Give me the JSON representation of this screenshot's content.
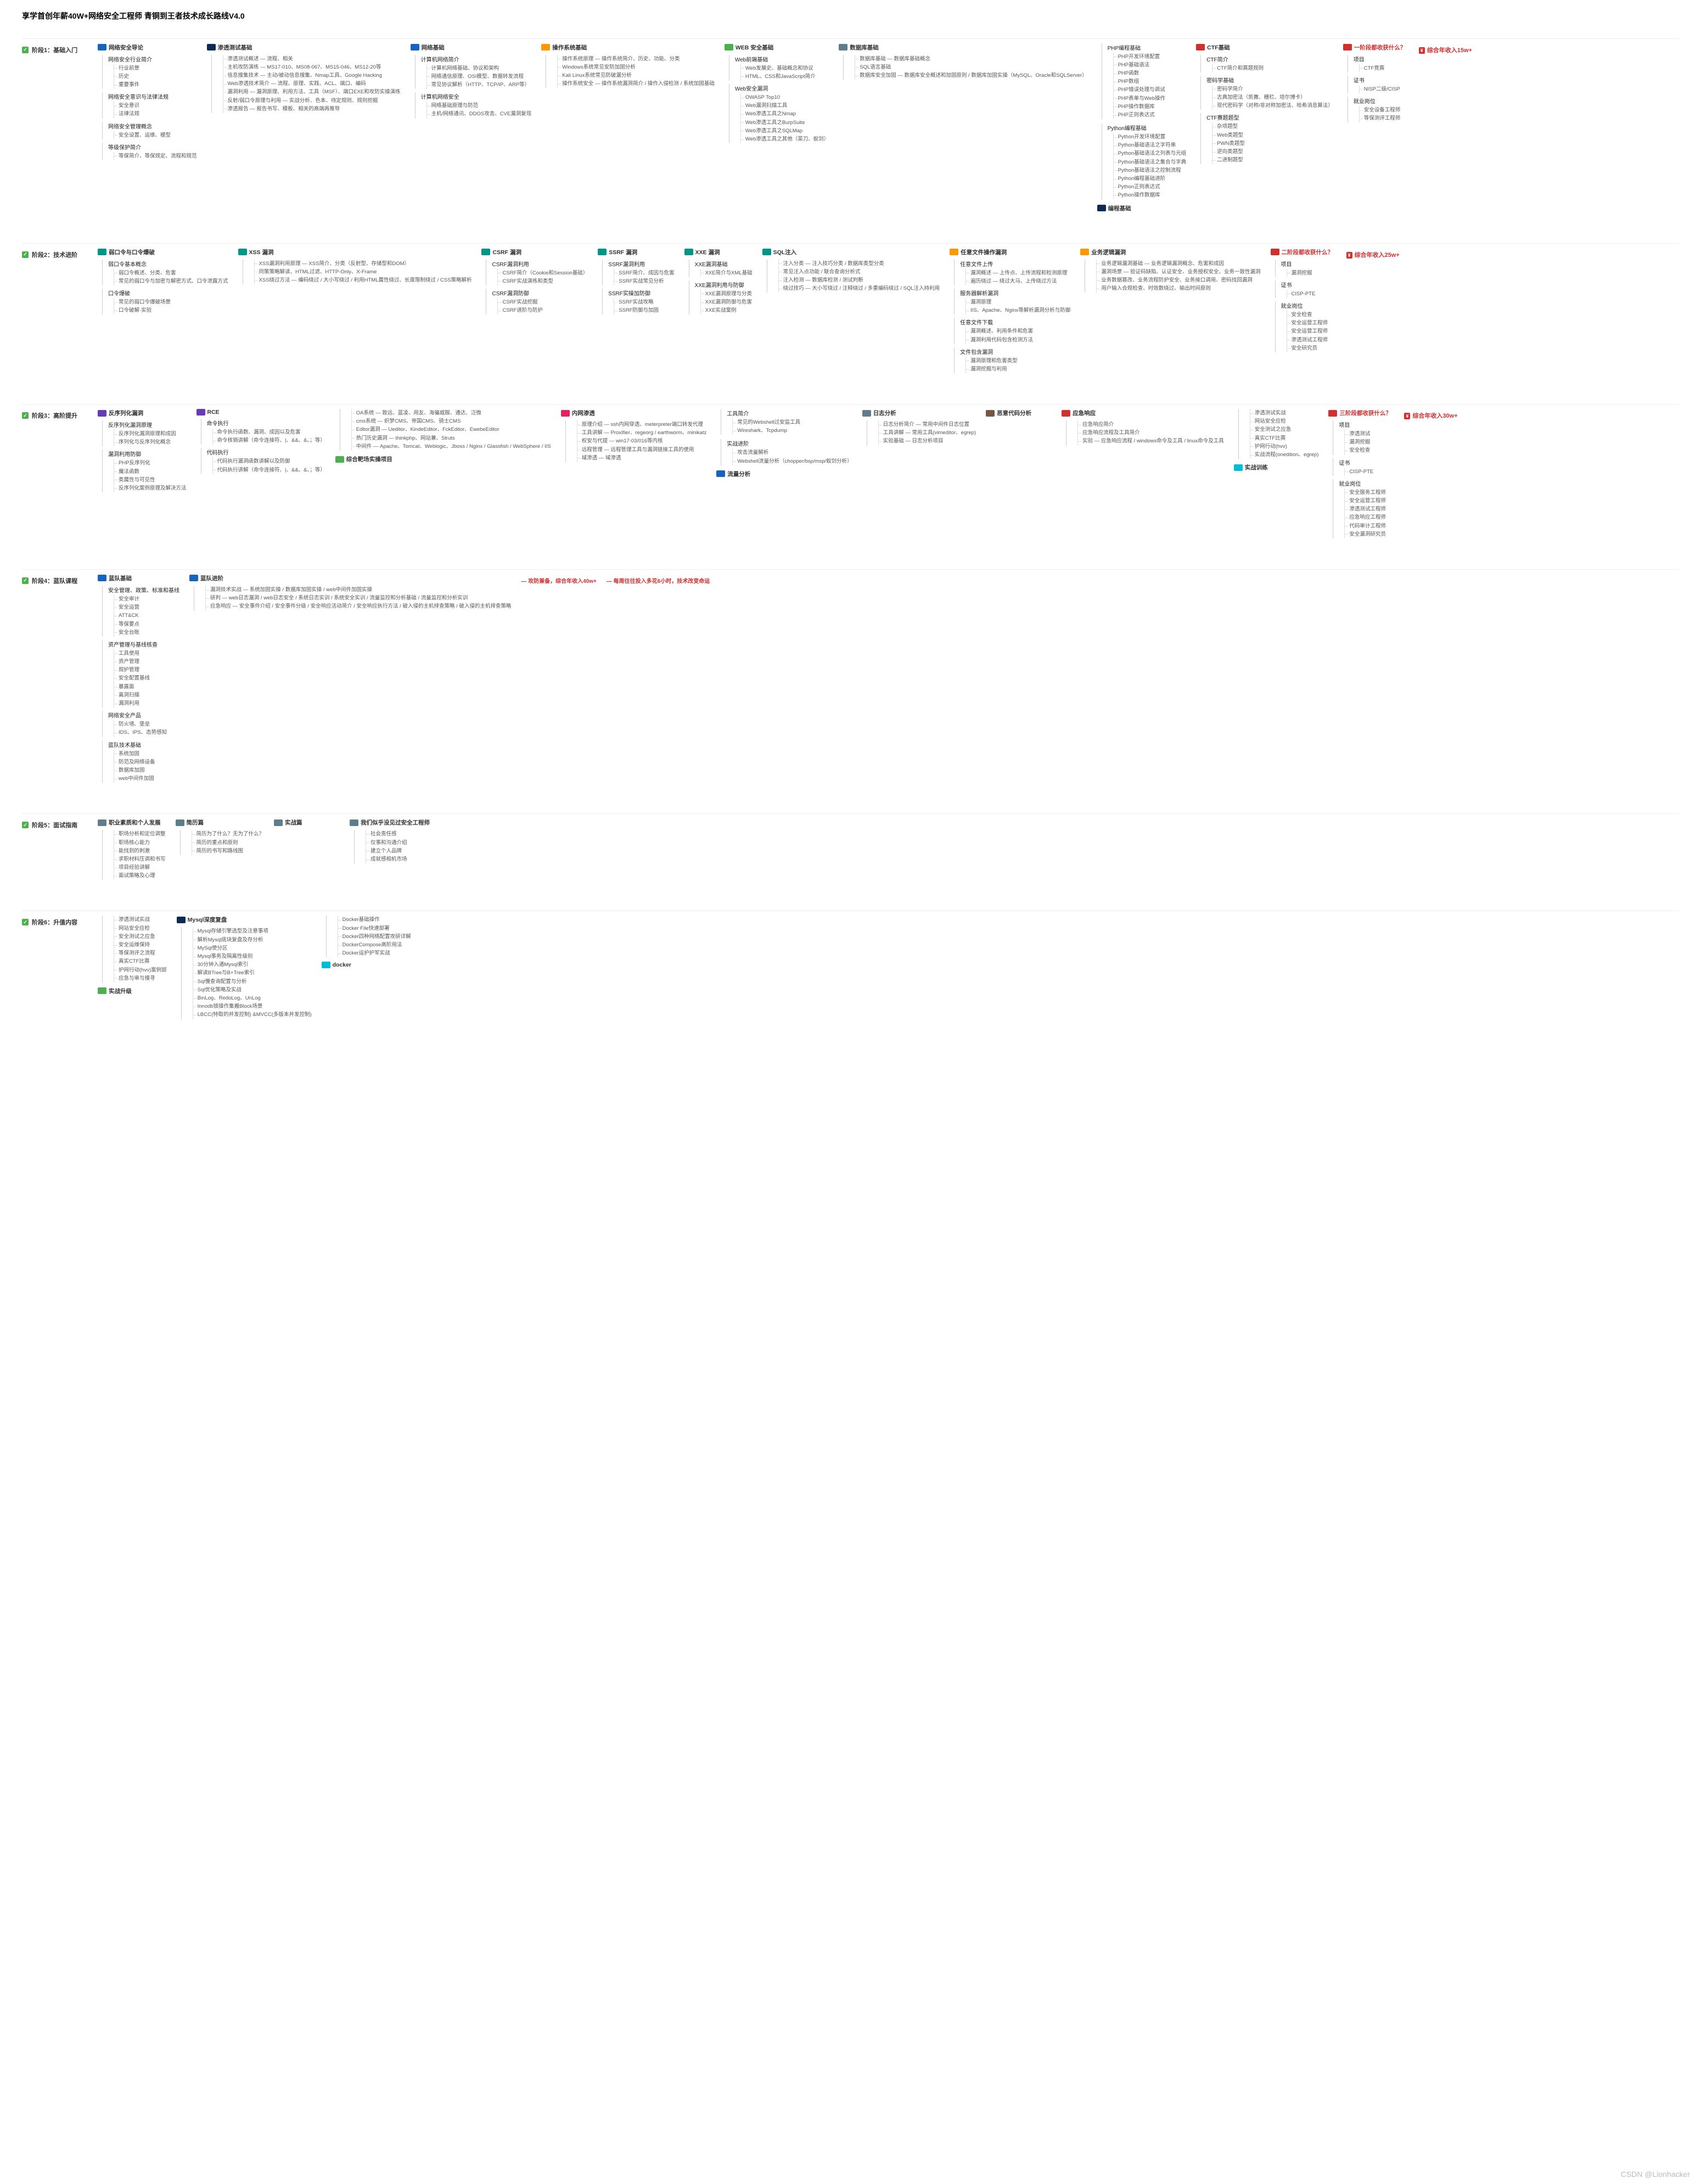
{
  "title": "享学首创年薪40W+网络安全工程师\n青铜到王者技术成长路线V4.0",
  "watermark": "CSDN @Lionhacker",
  "stages": [
    {
      "id": "stage1",
      "label": "阶段1：基础入门",
      "salary": "综合年收入15w+",
      "topics": [
        {
          "title": "网络安全导论",
          "badge": "c-blue",
          "groups": [
            {
              "head": "网络安全行业简介",
              "leaves": [
                "行业前景",
                "历史",
                "重要事件"
              ]
            },
            {
              "head": "网络安全意识与法律法规",
              "leaves": [
                "安全意识",
                "法律法规"
              ]
            },
            {
              "head": "网络安全管理概念",
              "leaves": [
                "安全设置、运维、模型"
              ]
            },
            {
              "head": "等级保护简介",
              "leaves": [
                "等保简介、等保规定、流程和规范"
              ]
            }
          ]
        },
        {
          "title": "渗透测试基础",
          "badge": "c-navy",
          "groups": [
            {
              "head": "",
              "leaves": [
                "渗透测试概述 — 流程、相关",
                "主机攻防演练 — MS17-010、MS08-067、MS15-046、MS12-20等",
                "信息搜集技术 — 主动/被动信息搜集、Nmap工具、Google Hacking",
                "Web渗透技术简介 — 流程、原理、实践、ACL、端口、编码",
                "漏洞利用 — 漏洞原理、利用方法、工具（MSF）、端口EXE和攻防实操演练",
                "反射/弱口令原理与利用 — 实战分析、色本、待定规则、规则挖掘",
                "渗透报告 — 报告书写、模板、相关的高端再推导"
              ]
            }
          ]
        },
        {
          "title": "网络基础",
          "badge": "c-blue",
          "groups": [
            {
              "head": "计算机网络简介",
              "leaves": [
                "计算机网络基础、协议和架构",
                "网络通信原理、OSI模型、数据转发流程",
                "常见协议解析（HTTP、TCP/IP、ARP等）"
              ]
            },
            {
              "head": "计算机网络安全",
              "leaves": [
                "网络基础原理与防范",
                "主机/网络通讯、DDOS攻击、CVE漏洞复现"
              ]
            }
          ]
        },
        {
          "title": "操作系统基础",
          "badge": "c-orange",
          "groups": [
            {
              "head": "",
              "leaves": [
                "操作系统原理 — 操作系统简介、历史、功能、分类",
                "Windows系统常见安防加固分析",
                "Kali Linux系统常见防破漏分析",
                "操作系统安全 — 操作系统漏洞简介 / 操作入侵检测 / 系统加固基础"
              ]
            }
          ]
        },
        {
          "title": "WEB 安全基础",
          "badge": "c-green",
          "groups": [
            {
              "head": "Web前端基础",
              "leaves": [
                "Web发展史、基础概念和协议",
                "HTML、CSS和JavaScript简介"
              ]
            },
            {
              "head": "Web安全漏洞",
              "leaves": [
                "OWASP Top10",
                "Web漏洞扫描工具",
                "Web渗透工具之Nmap",
                "Web渗透工具之BurpSuite",
                "Web渗透工具之SQLMap",
                "Web渗透工具之其他（菜刀、蚁剑）"
              ]
            }
          ]
        },
        {
          "title": "数据库基础",
          "badge": "c-gray",
          "groups": [
            {
              "head": "",
              "leaves": [
                "数据库基础 — 数据库基础概念",
                "SQL语言基础",
                "数据库安全加固 — 数据库安全概述和加固原则 / 数据库加固实操（MySQL、Oracle和SQLServer）"
              ]
            }
          ]
        },
        {
          "title": "编程基础",
          "badge": "c-navy",
          "aboveGroups": [
            {
              "head": "PHP编程基础",
              "leaves": [
                "PHP开发环境配置",
                "PHP基础语法",
                "PHP函数",
                "PHP数组",
                "PHP错误处理与调试",
                "PHP表单与Web操作",
                "PHP操作数据库",
                "PHP正则表达式"
              ]
            },
            {
              "head": "Python编程基础",
              "leaves": [
                "Python开发环境配置",
                "Python基础语法之字符串",
                "Python基础语法之列表与元组",
                "Python基础语法之集合与字典",
                "Python基础语法之控制流程",
                "Python编程基础进阶",
                "Python正则表达式",
                "Python操作数据库"
              ]
            }
          ]
        },
        {
          "title": "CTF基础",
          "badge": "c-red",
          "groups": [
            {
              "head": "CTF简介",
              "leaves": [
                "CTF简介和赛题规则"
              ]
            },
            {
              "head": "密码学基础",
              "leaves": [
                "密码学简介",
                "古典加密法（凯撒、栅栏、培尔博卡）",
                "现代密码学（对称/非对称加密法、哈希消息算法）"
              ]
            },
            {
              "head": "CTF赛题题型",
              "leaves": [
                "杂项题型",
                "Web类题型",
                "PWN类题型",
                "逆向类题型",
                "二进制题型"
              ]
            }
          ]
        },
        {
          "title": "一阶段都收获什么？",
          "badge": "c-red",
          "harvest": true,
          "groups": [
            {
              "head": "项目",
              "leaves": [
                "CTF竞赛"
              ]
            },
            {
              "head": "证书",
              "leaves": [
                "NISP二级/CISP"
              ]
            },
            {
              "head": "就业岗位",
              "leaves": [
                "安全设备工程师",
                "等保测评工程师"
              ]
            }
          ]
        }
      ]
    },
    {
      "id": "stage2",
      "label": "阶段2：技术进阶",
      "salary": "综合年收入25w+",
      "topics": [
        {
          "title": "弱口令与口令爆破",
          "badge": "c-teal",
          "groups": [
            {
              "head": "弱口令基本概念",
              "leaves": [
                "弱口令概述、分类、危害",
                "常见的弱口令与加密与解密方式、口令泄露方式"
              ]
            },
            {
              "head": "口令爆破",
              "leaves": [
                "常见的弱口令爆破场景",
                "口令破解·实验"
              ]
            }
          ]
        },
        {
          "title": "XSS 漏洞",
          "badge": "c-teal",
          "groups": [
            {
              "head": "",
              "leaves": [
                "XSS漏洞利用原理 — XSS简介、分类（反射型、存储型和DOM）",
                "同策策略解读、HTML过滤、HTTP-Only、X-Frame",
                "XSS绕过方法 — 编码绕过 / 大小写绕过 / 利用HTML属性绕过、长度限制绕过 / CSS策略解析"
              ]
            }
          ]
        },
        {
          "title": "CSRF 漏洞",
          "badge": "c-teal",
          "groups": [
            {
              "head": "CSRF漏洞利用",
              "leaves": [
                "CSRF简介（Cookie和Session基础）",
                "CSRF实战演练和类型"
              ]
            },
            {
              "head": "CSRF漏洞防御",
              "leaves": [
                "CSRF实战挖掘",
                "CSRF进阶与防护"
              ]
            }
          ]
        },
        {
          "title": "SSRF 漏洞",
          "badge": "c-teal",
          "groups": [
            {
              "head": "SSRF漏洞利用",
              "leaves": [
                "SSRF简介、成因与危害",
                "SSRF实战常见分析"
              ]
            },
            {
              "head": "SSRF实操加防御",
              "leaves": [
                "SSRF实战攻略",
                "SSRF防御与加固"
              ]
            }
          ]
        },
        {
          "title": "XXE 漏洞",
          "badge": "c-teal",
          "groups": [
            {
              "head": "XXE漏洞基础",
              "leaves": [
                "XXE简介与XML基础"
              ]
            },
            {
              "head": "XXE漏洞利用与防御",
              "leaves": [
                "XXE漏洞原理与分类",
                "XXE漏洞防御与危害",
                "XXE实战案例"
              ]
            }
          ]
        },
        {
          "title": "SQL注入",
          "badge": "c-teal",
          "groups": [
            {
              "head": "",
              "leaves": [
                "注入分类 — 注入技巧分类 / 数据库类型分类",
                "常见注入点功能 / 联合查询分析式",
                "注入检测 — 数据库检测 / 测试判断",
                "绕过技巧 — 大小写绕过 / 注释绕过 / 多重编码绕过 / SQL注入持利用"
              ]
            }
          ]
        },
        {
          "title": "任意文件操作漏洞",
          "badge": "c-orange",
          "groups": [
            {
              "head": "任意文件上传",
              "leaves": [
                "漏洞概述 — 上传点、上传流程和检测原理",
                "遍历绕过 — 绕过大马、上传绕过方法"
              ]
            },
            {
              "head": "服务器解析漏洞",
              "leaves": [
                "漏洞原理",
                "IIS、Apache、Nginx等解析漏洞分析与防御"
              ]
            },
            {
              "head": "任意文件下载",
              "leaves": [
                "漏洞概述、利用条件和危害",
                "漏洞利用代码包含检测方法"
              ]
            },
            {
              "head": "文件包含漏洞",
              "leaves": [
                "漏洞原理和危害类型",
                "漏洞挖掘与利用"
              ]
            }
          ]
        },
        {
          "title": "业务逻辑漏洞",
          "badge": "c-orange",
          "groups": [
            {
              "head": "",
              "leaves": [
                "业务逻辑漏洞基础 — 业务逻辑漏洞概念、危害和成因",
                "漏洞场景 — 验证码缺陷、认证安全、业务授权安全、业务一致性漏洞",
                "业务数据篡改、业务流程防护安全、业务接口调用、密码找回漏洞",
                "用户输入合规检查、时效数绕过、输出时间原则"
              ]
            }
          ]
        },
        {
          "title": "二阶段都收获什么？",
          "badge": "c-red",
          "harvest": true,
          "groups": [
            {
              "head": "项目",
              "leaves": [
                "漏洞挖掘"
              ]
            },
            {
              "head": "证书",
              "leaves": [
                "CISP-PTE"
              ]
            },
            {
              "head": "就业岗位",
              "leaves": [
                "安全检查",
                "安全运营工程师",
                "安全运营工程师",
                "渗透测试工程师",
                "安全研究员"
              ]
            }
          ]
        }
      ]
    },
    {
      "id": "stage3",
      "label": "阶段3：高阶提升",
      "salary": "综合年收入30w+",
      "topics": [
        {
          "title": "反序列化漏洞",
          "badge": "c-purple",
          "groups": [
            {
              "head": "反序列化漏洞原理",
              "leaves": [
                "反序列化漏洞原理和成因",
                "序列化与反序列化概念"
              ]
            },
            {
              "head": "漏洞利用防御",
              "leaves": [
                "PHP反序列化",
                "魔法函数",
                "类属性与可见性",
                "反序列化案例原理及解决方法"
              ]
            }
          ]
        },
        {
          "title": "RCE",
          "badge": "c-purple",
          "groups": [
            {
              "head": "命令执行",
              "leaves": [
                "命令执行函数、漏洞、成因以及危害",
                "命令核销讲解（命令连接符、|、&&、&、；等）"
              ]
            },
            {
              "head": "代码执行",
              "leaves": [
                "代码执行漏洞函数讲解以及防御",
                "代码执行讲解（命令连接符、|、&&、&、；等）"
              ]
            }
          ]
        },
        {
          "title": "综合靶场实操项目",
          "badge": "c-green",
          "aboveGroups": [
            {
              "head": "",
              "leaves": [
                "OA系统 — 致远、蓝凌、用友、海骗威服、通达、泛微",
                "cms系统 — 织梦CMS、帝国CMS、骑士CMS",
                "Editor漏洞 — Ueditor、KindeEditor、FckEditor、EwebeEditor",
                "热门历史漏洞 — thinkphp、网站兼、Struts",
                "中间件 — Apache、Tomcat、Weblogic、Jboss / Nginx / Glassfish / WebSphere / IIS"
              ]
            }
          ]
        },
        {
          "title": "内网渗透",
          "badge": "c-pink",
          "groups": [
            {
              "head": "",
              "leaves": [
                "原理介绍 — ssh内网穿透、meterpreter端口转发代理",
                "工具讲解 — ProxIfier、regeorg / earthworm、minikatz",
                "权安与代提 — win17-03/016等内核",
                "远程管理 — 远程管理工具与漏洞链接工具的使用",
                "域渗透 — 域渗透"
              ]
            }
          ]
        },
        {
          "title": "流量分析",
          "badge": "c-blue",
          "aboveGroups": [
            {
              "head": "工具简介",
              "leaves": [
                "常见的Webshell过安监工具",
                "Wireshark、Tcpdump"
              ]
            },
            {
              "head": "实战进阶",
              "leaves": [
                "攻击流量解析",
                "Webshell流量分析（chopper/bsp/msp/蚁剑分析）"
              ]
            }
          ]
        },
        {
          "title": "日志分析",
          "badge": "c-gray",
          "groups": [
            {
              "head": "",
              "leaves": [
                "日志分析简介 — 常用中间件日志位置",
                "工具讲解 — 常用工具(vimeditor、egrep)",
                "实验基础 — 日志分析项目"
              ]
            }
          ]
        },
        {
          "title": "恶意代码分析",
          "badge": "c-brown",
          "groups": []
        },
        {
          "title": "应急响应",
          "badge": "c-red",
          "groups": [
            {
              "head": "",
              "leaves": [
                "应急响应简介",
                "应急响应流程及工具简介",
                "实验 — 应急响应流程 / windows命令及工具 / linux命令及工具"
              ]
            }
          ]
        },
        {
          "title": "实战训练",
          "badge": "c-cyan",
          "aboveGroups": [
            {
              "head": "",
              "leaves": [
                "渗透测试实战",
                "网站安全应检",
                "安全测试之应急",
                "真实CTF比赛",
                "护网行动(hvv)",
                "实战流程(onedition、egrep)"
              ]
            }
          ]
        },
        {
          "title": "三阶段都收获什么？",
          "badge": "c-red",
          "harvest": true,
          "groups": [
            {
              "head": "项目",
              "leaves": [
                "渗透测试",
                "漏洞挖掘",
                "安全检查"
              ]
            },
            {
              "head": "证书",
              "leaves": [
                "CISP-PTE"
              ]
            },
            {
              "head": "就业岗位",
              "leaves": [
                "安全服务工程师",
                "安全运营工程师",
                "渗透测试工程师",
                "应急响应工程师",
                "代码审计工程师",
                "安全漏洞研究员"
              ]
            }
          ]
        }
      ]
    },
    {
      "id": "stage4",
      "label": "阶段4：蓝队课程",
      "topics": [
        {
          "title": "蓝队基础",
          "badge": "c-blue",
          "groups": [
            {
              "head": "安全管理、政策、标准和基线",
              "leaves": [
                "安全审计",
                "安全运营",
                "ATT&CK",
                "等保要点",
                "安全台账"
              ]
            },
            {
              "head": "资产管理与基线核查",
              "leaves": [
                "工具使用",
                "资产管理",
                "规护管理",
                "安全配置基线",
                "暴露面",
                "离洞扫描",
                "漏洞利用"
              ]
            },
            {
              "head": "网络安全产品",
              "leaves": [
                "防火墙、堡垒",
                "IDS、IPS、态势感知"
              ]
            },
            {
              "head": "蓝队技术基础",
              "leaves": [
                "系统加固",
                "防范及网络设备",
                "数据库加固",
                "web中间件加固"
              ]
            }
          ]
        },
        {
          "title": "蓝队进阶",
          "badge": "c-blue",
          "groups": [
            {
              "head": "",
              "leaves": [
                "漏洞技术实战 — 系统加固实操 / 数据库加固实操 / web中间件加固实操",
                "研判 — web日志漏洞 / web日志安全 / 系统日志实训 / 系统安全实训 / 流量监控和分析基础 / 流量监控和分析实训",
                "应急响应 — 安全事件介绍 / 安全事件分级 / 安全响应活动简介 / 安全响应执行方法 / 破入侵的主机排查策略 / 破入侵的主机排查策略"
              ]
            }
          ]
        },
        {
          "title": "攻防兼备，综合年收入40w+",
          "redNote": true
        },
        {
          "title": "每周往往投入多花6小时，技术改变命运",
          "redNote": true
        }
      ]
    },
    {
      "id": "stage5",
      "label": "阶段5：面试指南",
      "topics": [
        {
          "title": "职业素质和个人发展",
          "badge": "c-gray",
          "groups": [
            {
              "head": "",
              "leaves": [
                "职场分析和定位调整",
                "职场核心能力",
                "能找到的刺激",
                "求职材料压调和书写",
                "项目经验讲解",
                "面试策略及心理"
              ]
            }
          ]
        },
        {
          "title": "简历篇",
          "badge": "c-gray",
          "groups": [
            {
              "head": "",
              "leaves": [
                "简历为了什么？无为了什么？",
                "简历的重点和原则",
                "简历的书写和路线图"
              ]
            }
          ]
        },
        {
          "title": "实战篇",
          "badge": "c-gray",
          "groups": []
        },
        {
          "title": "我们似乎没见过安全工程师",
          "badge": "c-gray",
          "groups": [
            {
              "head": "",
              "leaves": [
                "社会责任感",
                "仅事和沟通介绍",
                "建立个人品牌",
                "成就感相机市场"
              ]
            }
          ]
        }
      ]
    },
    {
      "id": "stage6",
      "label": "阶段6：升值内容",
      "topics": [
        {
          "title": "实战升级",
          "badge": "c-green",
          "aboveGroups": [
            {
              "head": "",
              "leaves": [
                "渗透测试实战",
                "网站安全应检",
                "安全测试之应急",
                "安全运维保持",
                "等保测评之流程",
                "真实CTF比赛",
                "护网行动(hvv)案例部",
                "应急与审与搜寻"
              ]
            }
          ]
        },
        {
          "title": "Mysql深度复盘",
          "badge": "c-navy",
          "groups": [
            {
              "head": "",
              "leaves": [
                "Mysql存储引擎选型及注意事项",
                "解析Mysql底块复盘及存分析",
                "MySql使分区",
                "Mysql事务及隔离性级别",
                "30分钟入通Mysql索引",
                "解读BTree与B+Tree索引",
                "Sql慢查询配置与分析",
                "Sql优化策略及实战",
                "BinLog、RedoLog、UnLog",
                "Innodb锁操作集搬Block场景",
                "LBCC(特取的并发控制) &MVCC(多版本并发控制)"
              ]
            }
          ]
        },
        {
          "title": "docker",
          "badge": "c-cyan",
          "aboveGroups": [
            {
              "head": "",
              "leaves": [
                "Docker基础操作",
                "Docker File快速部署",
                "Docker四种网络配置攻研详解",
                "DockerCompose高阶用法",
                "Docker运护护军实战"
              ]
            }
          ]
        }
      ]
    }
  ]
}
